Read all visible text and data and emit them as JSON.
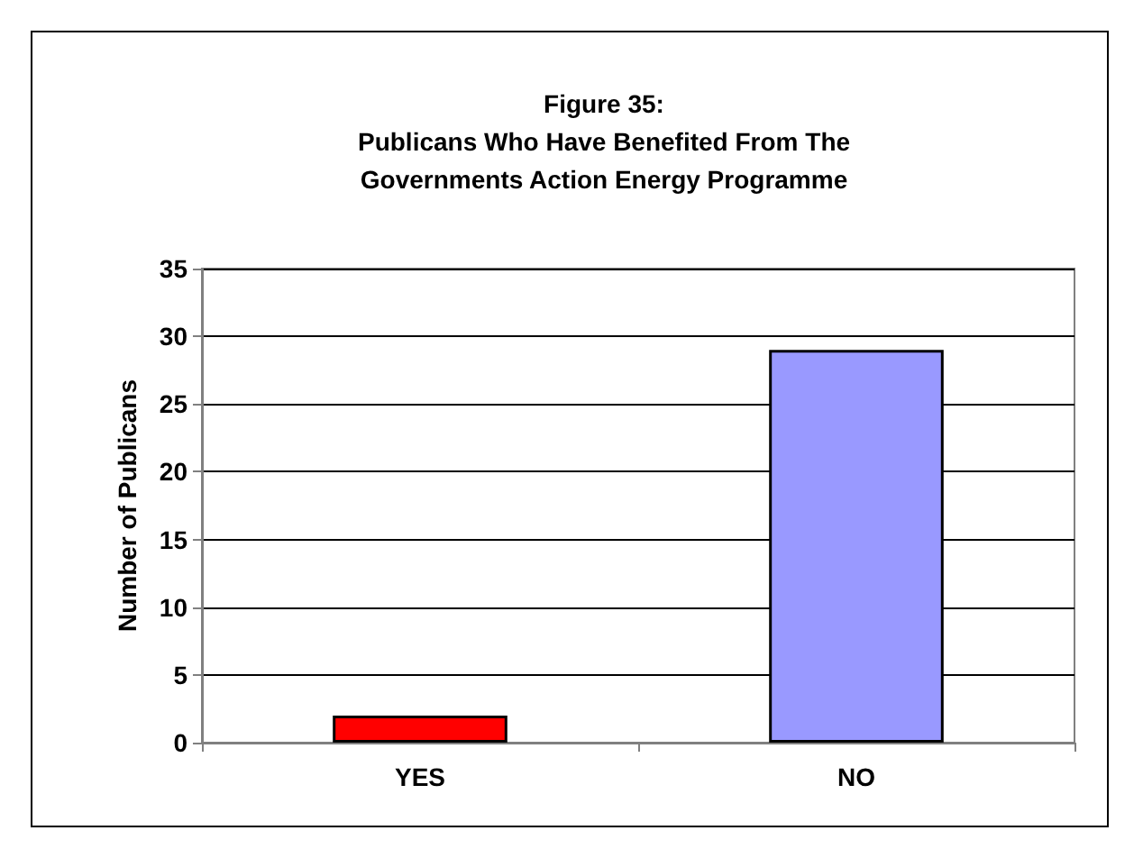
{
  "chart_data": {
    "type": "bar",
    "title": "Figure 35:\nPublicans Who Have Benefited From The\nGovernments Action Energy Programme",
    "ylabel": "Number of Publicans",
    "categories": [
      "YES",
      "NO"
    ],
    "values": [
      2,
      29
    ],
    "colors": [
      "#ff0000",
      "#9999ff"
    ],
    "ylim": [
      0,
      35
    ],
    "yticks": [
      0,
      5,
      10,
      15,
      20,
      25,
      30,
      35
    ],
    "grid": "y"
  }
}
